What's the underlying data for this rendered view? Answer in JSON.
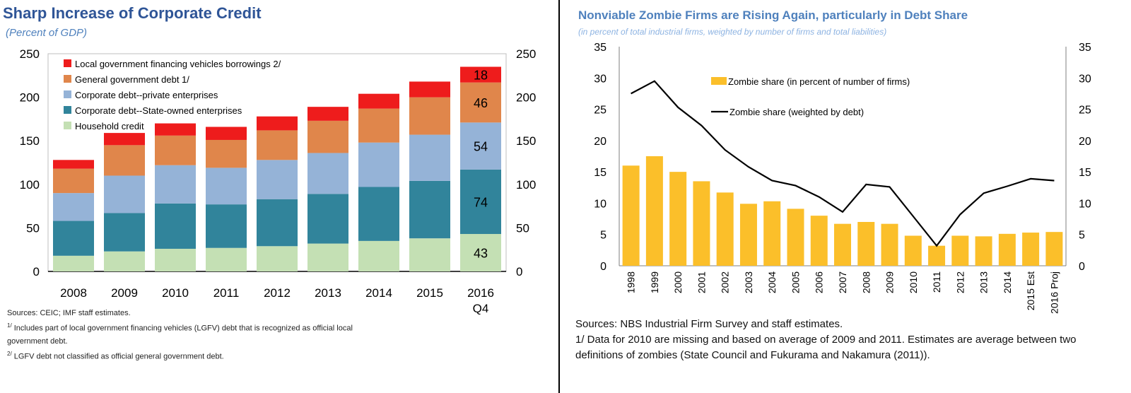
{
  "left": {
    "title": "Sharp Increase of Corporate Credit",
    "subtitle": "(Percent of GDP)",
    "note_sources": "Sources: CEIC; IMF staff estimates.",
    "note1_mark": "1/",
    "note1": "Includes part of local government financing vehicles (LGFV) debt that is recognized as official local government debt.",
    "note2_mark": "2/",
    "note2": "LGFV debt not classified as official general government debt."
  },
  "right": {
    "title": "Nonviable Zombie Firms are Rising Again, particularly in Debt Share",
    "subtitle": "(in percent of total industrial firms, weighted by number of firms and total liabilities)",
    "note_sources": "Sources: NBS Industrial Firm Survey and staff estimates.",
    "note1": "1/ Data for 2010 are missing and based on average of 2009 and 2011. Estimates are average between two definitions of zombies (State Council and Fukurama and Nakamura (2011))."
  },
  "chart_data": [
    {
      "type": "bar",
      "stacked": true,
      "title": "Sharp Increase of Corporate Credit",
      "ylabel": "Percent of GDP",
      "ylim": [
        0,
        250
      ],
      "yticks": [
        "0",
        "50",
        "100",
        "150",
        "200",
        "250"
      ],
      "categories": [
        "2008",
        "2009",
        "2010",
        "2011",
        "2012",
        "2013",
        "2014",
        "2015",
        "2016 Q4"
      ],
      "category_lines": [
        [
          "2008"
        ],
        [
          "2009"
        ],
        [
          "2010"
        ],
        [
          "2011"
        ],
        [
          "2012"
        ],
        [
          "2013"
        ],
        [
          "2014"
        ],
        [
          "2015"
        ],
        [
          "2016",
          "Q4"
        ]
      ],
      "series": [
        {
          "name": "Household credit",
          "color": "#c4e0b4",
          "values": [
            18,
            23,
            26,
            27,
            29,
            32,
            35,
            38,
            43
          ]
        },
        {
          "name": "Corporate debt--State-owned enterprises",
          "color": "#31849b",
          "values": [
            40,
            44,
            52,
            50,
            54,
            57,
            62,
            66,
            74
          ]
        },
        {
          "name": "Corporate debt--private enterprises",
          "color": "#95b3d7",
          "values": [
            32,
            43,
            44,
            42,
            45,
            47,
            51,
            53,
            54
          ]
        },
        {
          "name": "General government debt 1/",
          "color": "#e0864b",
          "values": [
            28,
            35,
            34,
            32,
            34,
            37,
            39,
            43,
            46
          ]
        },
        {
          "name": "Local government financing vehicles borrowings 2/",
          "color": "#ee1c1c",
          "values": [
            10,
            14,
            14,
            15,
            16,
            16,
            17,
            18,
            18
          ]
        }
      ],
      "data_labels": [
        {
          "category": "2016 Q4",
          "series": "Local government financing vehicles borrowings 2/",
          "text": "18"
        },
        {
          "category": "2016 Q4",
          "series": "General government debt 1/",
          "text": "46"
        },
        {
          "category": "2016 Q4",
          "series": "Corporate debt--private enterprises",
          "text": "54"
        },
        {
          "category": "2016 Q4",
          "series": "Corporate debt--State-owned enterprises",
          "text": "74"
        },
        {
          "category": "2016 Q4",
          "series": "Household credit",
          "text": "43"
        }
      ],
      "legend_order": [
        "Local government financing vehicles borrowings 2/",
        "General government debt 1/",
        "Corporate debt--private enterprises",
        "Corporate debt--State-owned enterprises",
        "Household credit"
      ],
      "legend_position": "top-left",
      "grid": false
    },
    {
      "type": "bar+line",
      "title": "Nonviable Zombie Firms are Rising Again, particularly in Debt Share",
      "ylim": [
        0,
        35
      ],
      "yticks": [
        "0",
        "5",
        "10",
        "15",
        "20",
        "25",
        "30",
        "35"
      ],
      "categories": [
        "1998",
        "1999",
        "2000",
        "2001",
        "2002",
        "2003",
        "2004",
        "2005",
        "2006",
        "2007",
        "2008",
        "2009",
        "2010",
        "2011",
        "2012",
        "2013",
        "2014",
        "2015 Est",
        "2016 Proj"
      ],
      "series": [
        {
          "name": "Zombie share (in percent of number of firms)",
          "kind": "bar",
          "color": "#fbbf2a",
          "values": [
            16.0,
            17.5,
            15.0,
            13.5,
            11.7,
            9.9,
            10.3,
            9.1,
            8.0,
            6.7,
            7.0,
            6.7,
            4.8,
            3.2,
            4.8,
            4.7,
            5.1,
            5.3,
            5.4
          ]
        },
        {
          "name": "Zombie share (weighted by debt)",
          "kind": "line",
          "color": "#000000",
          "values": [
            27.5,
            29.5,
            25.3,
            22.4,
            18.5,
            15.8,
            13.6,
            12.8,
            11.0,
            8.6,
            13.0,
            12.6,
            7.9,
            3.2,
            8.2,
            11.6,
            12.7,
            13.9,
            13.6
          ]
        }
      ],
      "legend_position": "top-center",
      "grid": false
    }
  ]
}
